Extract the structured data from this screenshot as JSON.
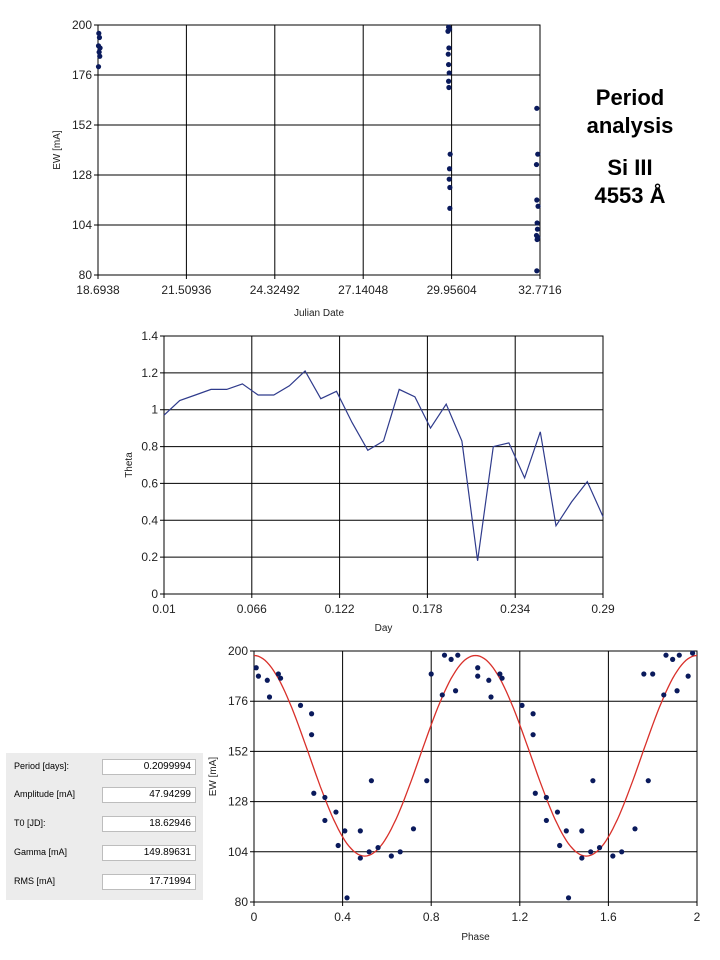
{
  "side_title": {
    "line1": "Period",
    "line2": "analysis",
    "line3": "Si III",
    "line4": "4553 Å"
  },
  "params": [
    {
      "label": "Period [days]:",
      "value": "0.2099994"
    },
    {
      "label": "Amplitude  [mA]",
      "value": "47.94299"
    },
    {
      "label": "T0 [JD]:",
      "value": "18.62946"
    },
    {
      "label": "Gamma  [mA]",
      "value": "149.89631"
    },
    {
      "label": "RMS  [mA]",
      "value": "17.71994"
    }
  ],
  "chart_data": [
    {
      "type": "scatter",
      "xlabel": "Julian Date",
      "ylabel": "EW [mA]",
      "xlim": [
        18.6938,
        32.7716
      ],
      "ylim": [
        80,
        200
      ],
      "xticks": [
        "18.6938",
        "21.50936",
        "24.32492",
        "27.14048",
        "29.95604",
        "32.7716"
      ],
      "yticks": [
        "80",
        "104",
        "128",
        "152",
        "176",
        "200"
      ],
      "grid": true,
      "marker_color": "#0a1a5c",
      "points": [
        [
          18.72,
          196
        ],
        [
          18.74,
          194
        ],
        [
          18.71,
          190
        ],
        [
          18.76,
          189
        ],
        [
          18.73,
          187
        ],
        [
          18.75,
          185
        ],
        [
          18.71,
          180
        ],
        [
          29.86,
          199
        ],
        [
          29.89,
          198
        ],
        [
          29.84,
          197
        ],
        [
          29.87,
          189
        ],
        [
          29.85,
          186
        ],
        [
          29.86,
          181
        ],
        [
          29.88,
          177
        ],
        [
          29.86,
          173
        ],
        [
          29.87,
          170
        ],
        [
          29.91,
          138
        ],
        [
          29.89,
          131
        ],
        [
          29.88,
          126
        ],
        [
          29.9,
          122
        ],
        [
          29.9,
          112
        ],
        [
          32.67,
          160
        ],
        [
          32.7,
          138
        ],
        [
          32.66,
          133
        ],
        [
          32.67,
          116
        ],
        [
          32.71,
          113
        ],
        [
          32.68,
          105
        ],
        [
          32.69,
          102
        ],
        [
          32.66,
          99
        ],
        [
          32.7,
          98
        ],
        [
          32.68,
          97
        ],
        [
          32.67,
          82
        ]
      ]
    },
    {
      "type": "line",
      "xlabel": "Day",
      "ylabel": "Theta",
      "xlim": [
        0.01,
        0.29
      ],
      "ylim": [
        0,
        1.4
      ],
      "xticks": [
        "0.01",
        "0.066",
        "0.122",
        "0.178",
        "0.234",
        "0.29"
      ],
      "yticks": [
        "0",
        "0.2",
        "0.4",
        "0.6",
        "0.8",
        "1",
        "1.2",
        "1.4"
      ],
      "grid": true,
      "line_color": "#2f3b8c",
      "x": [
        0.01,
        0.02,
        0.03,
        0.04,
        0.05,
        0.06,
        0.07,
        0.08,
        0.09,
        0.1,
        0.11,
        0.12,
        0.13,
        0.14,
        0.15,
        0.16,
        0.17,
        0.18,
        0.19,
        0.2,
        0.21,
        0.22,
        0.23,
        0.24,
        0.25,
        0.26,
        0.27,
        0.28,
        0.29
      ],
      "y": [
        0.97,
        1.05,
        1.08,
        1.11,
        1.11,
        1.14,
        1.08,
        1.08,
        1.13,
        1.21,
        1.06,
        1.1,
        0.93,
        0.78,
        0.83,
        1.11,
        1.07,
        0.9,
        1.03,
        0.83,
        0.18,
        0.8,
        0.82,
        0.63,
        0.88,
        0.37,
        0.5,
        0.61,
        0.42
      ]
    },
    {
      "type": "scatter",
      "xlabel": "Phase",
      "ylabel": "EW [mA]",
      "xlim": [
        0,
        2
      ],
      "ylim": [
        80,
        200
      ],
      "xticks": [
        "0",
        "0.4",
        "0.8",
        "1.2",
        "1.6",
        "2"
      ],
      "yticks": [
        "80",
        "104",
        "128",
        "152",
        "176",
        "200"
      ],
      "grid": true,
      "marker_color": "#0a1a5c",
      "fit_color": "#d9302a",
      "fit_model": {
        "gamma": 149.89631,
        "amplitude": 47.94299,
        "phase_of_maximum": 0
      },
      "points": [
        [
          0.01,
          192
        ],
        [
          0.02,
          188
        ],
        [
          0.06,
          186
        ],
        [
          0.07,
          178
        ],
        [
          0.11,
          189
        ],
        [
          0.12,
          187
        ],
        [
          0.21,
          174
        ],
        [
          0.26,
          170
        ],
        [
          0.26,
          160
        ],
        [
          0.27,
          132
        ],
        [
          0.32,
          130
        ],
        [
          0.32,
          119
        ],
        [
          0.37,
          123
        ],
        [
          0.38,
          107
        ],
        [
          0.41,
          114
        ],
        [
          0.42,
          82
        ],
        [
          0.48,
          101
        ],
        [
          0.48,
          114
        ],
        [
          0.52,
          104
        ],
        [
          0.53,
          138
        ],
        [
          0.56,
          106
        ],
        [
          0.62,
          102
        ],
        [
          0.66,
          104
        ],
        [
          0.72,
          115
        ],
        [
          0.78,
          138
        ],
        [
          0.8,
          189
        ],
        [
          0.85,
          179
        ],
        [
          0.86,
          198
        ],
        [
          0.89,
          196
        ],
        [
          0.91,
          181
        ],
        [
          0.92,
          198
        ],
        [
          1.01,
          188
        ],
        [
          1.01,
          192
        ],
        [
          1.06,
          186
        ],
        [
          1.07,
          178
        ],
        [
          1.11,
          189
        ],
        [
          1.12,
          187
        ],
        [
          1.21,
          174
        ],
        [
          1.26,
          170
        ],
        [
          1.26,
          160
        ],
        [
          1.27,
          132
        ],
        [
          1.32,
          130
        ],
        [
          1.32,
          119
        ],
        [
          1.37,
          123
        ],
        [
          1.38,
          107
        ],
        [
          1.41,
          114
        ],
        [
          1.42,
          82
        ],
        [
          1.48,
          101
        ],
        [
          1.48,
          114
        ],
        [
          1.52,
          104
        ],
        [
          1.53,
          138
        ],
        [
          1.56,
          106
        ],
        [
          1.62,
          102
        ],
        [
          1.66,
          104
        ],
        [
          1.72,
          115
        ],
        [
          1.78,
          138
        ],
        [
          1.8,
          189
        ],
        [
          1.76,
          189
        ],
        [
          1.85,
          179
        ],
        [
          1.86,
          198
        ],
        [
          1.89,
          196
        ],
        [
          1.91,
          181
        ],
        [
          1.92,
          198
        ],
        [
          1.96,
          188
        ],
        [
          1.98,
          199
        ]
      ]
    }
  ]
}
